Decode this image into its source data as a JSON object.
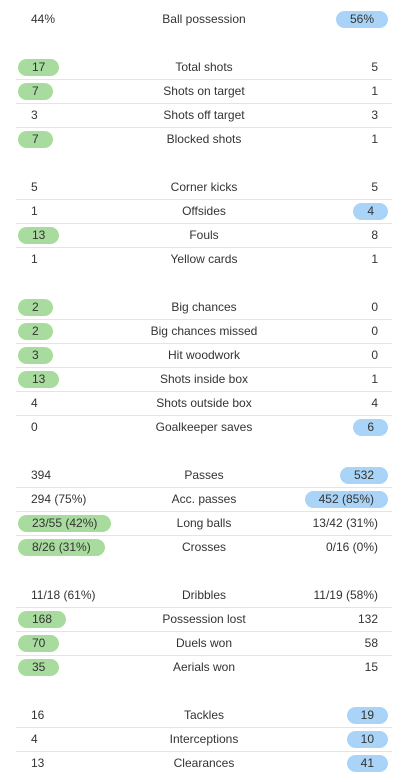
{
  "colors": {
    "home_highlight": "#a8dc9e",
    "away_highlight": "#a9d4f7",
    "divider": "#e4e4e4",
    "text": "#333333"
  },
  "groups": [
    {
      "rows": [
        {
          "label": "Ball possession",
          "home": "44%",
          "away": "56%",
          "highlight": "away"
        }
      ]
    },
    {
      "rows": [
        {
          "label": "Total shots",
          "home": "17",
          "away": "5",
          "highlight": "home"
        },
        {
          "label": "Shots on target",
          "home": "7",
          "away": "1",
          "highlight": "home"
        },
        {
          "label": "Shots off target",
          "home": "3",
          "away": "3",
          "highlight": "none"
        },
        {
          "label": "Blocked shots",
          "home": "7",
          "away": "1",
          "highlight": "home"
        }
      ]
    },
    {
      "rows": [
        {
          "label": "Corner kicks",
          "home": "5",
          "away": "5",
          "highlight": "none"
        },
        {
          "label": "Offsides",
          "home": "1",
          "away": "4",
          "highlight": "away"
        },
        {
          "label": "Fouls",
          "home": "13",
          "away": "8",
          "highlight": "home"
        },
        {
          "label": "Yellow cards",
          "home": "1",
          "away": "1",
          "highlight": "none"
        }
      ]
    },
    {
      "rows": [
        {
          "label": "Big chances",
          "home": "2",
          "away": "0",
          "highlight": "home"
        },
        {
          "label": "Big chances missed",
          "home": "2",
          "away": "0",
          "highlight": "home"
        },
        {
          "label": "Hit woodwork",
          "home": "3",
          "away": "0",
          "highlight": "home"
        },
        {
          "label": "Shots inside box",
          "home": "13",
          "away": "1",
          "highlight": "home"
        },
        {
          "label": "Shots outside box",
          "home": "4",
          "away": "4",
          "highlight": "none"
        },
        {
          "label": "Goalkeeper saves",
          "home": "0",
          "away": "6",
          "highlight": "away"
        }
      ]
    },
    {
      "rows": [
        {
          "label": "Passes",
          "home": "394",
          "away": "532",
          "highlight": "away"
        },
        {
          "label": "Acc. passes",
          "home": "294 (75%)",
          "away": "452 (85%)",
          "highlight": "away"
        },
        {
          "label": "Long balls",
          "home": "23/55 (42%)",
          "away": "13/42 (31%)",
          "highlight": "home"
        },
        {
          "label": "Crosses",
          "home": "8/26 (31%)",
          "away": "0/16 (0%)",
          "highlight": "home"
        }
      ]
    },
    {
      "rows": [
        {
          "label": "Dribbles",
          "home": "11/18 (61%)",
          "away": "11/19 (58%)",
          "highlight": "none"
        },
        {
          "label": "Possession lost",
          "home": "168",
          "away": "132",
          "highlight": "home"
        },
        {
          "label": "Duels won",
          "home": "70",
          "away": "58",
          "highlight": "home"
        },
        {
          "label": "Aerials won",
          "home": "35",
          "away": "15",
          "highlight": "home"
        }
      ]
    },
    {
      "rows": [
        {
          "label": "Tackles",
          "home": "16",
          "away": "19",
          "highlight": "away"
        },
        {
          "label": "Interceptions",
          "home": "4",
          "away": "10",
          "highlight": "away"
        },
        {
          "label": "Clearances",
          "home": "13",
          "away": "41",
          "highlight": "away"
        }
      ]
    }
  ]
}
